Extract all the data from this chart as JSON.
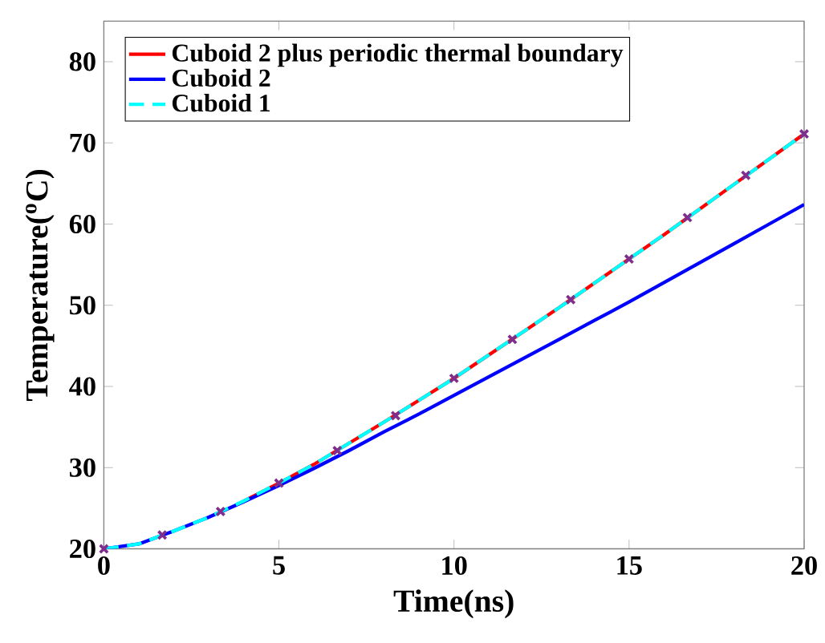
{
  "chart_data": {
    "type": "line",
    "xlabel": "Time(ns)",
    "ylabel": "Temperature($^{o}$C)",
    "xlim": [
      0,
      20
    ],
    "ylim": [
      20,
      85
    ],
    "xticks": [
      0,
      5,
      10,
      15,
      20
    ],
    "yticks": [
      20,
      30,
      40,
      50,
      60,
      70,
      80
    ],
    "legend": "top left",
    "grid": false,
    "x": [
      0,
      1,
      2,
      3,
      4,
      5,
      6,
      7,
      8,
      9,
      10,
      11,
      12,
      13,
      14,
      15,
      16,
      17,
      18,
      19,
      20
    ],
    "series": [
      {
        "name": "Cuboid 2 plus periodic thermal boundary",
        "color": "#ff0000",
        "line_style": "solid",
        "values": [
          null,
          null,
          null,
          null,
          25.9,
          28.1,
          30.4,
          33.0,
          35.6,
          38.3,
          41.0,
          43.9,
          46.8,
          49.7,
          52.7,
          55.7,
          58.7,
          61.8,
          64.9,
          68.0,
          71.1
        ]
      },
      {
        "name": "Cuboid 2",
        "color": "#0000ff",
        "line_style": "solid",
        "values": [
          20,
          20.6,
          22.2,
          23.9,
          25.8,
          27.8,
          29.9,
          32.1,
          34.4,
          36.6,
          38.9,
          41.2,
          43.5,
          45.8,
          48.1,
          50.4,
          52.8,
          55.2,
          57.6,
          60.0,
          62.4
        ]
      },
      {
        "name": "Cuboid 1",
        "color": "#00ffff",
        "line_style": "dashed",
        "values": [
          20,
          20.6,
          22.2,
          23.9,
          25.9,
          28.1,
          30.4,
          33.0,
          35.6,
          38.3,
          41.0,
          43.9,
          46.8,
          49.7,
          52.7,
          55.7,
          58.7,
          61.8,
          64.9,
          68.0,
          71.1
        ]
      },
      {
        "type": "scatter",
        "marker": "cross",
        "color": "#7e2f8e",
        "x": [
          0,
          1.667,
          3.333,
          5,
          6.667,
          8.333,
          10,
          11.667,
          13.333,
          15,
          16.667,
          18.333,
          20
        ],
        "values": [
          20,
          21.7,
          24.6,
          28.1,
          32.1,
          36.4,
          41.0,
          45.8,
          50.7,
          55.7,
          60.8,
          66.0,
          71.1
        ]
      }
    ]
  }
}
